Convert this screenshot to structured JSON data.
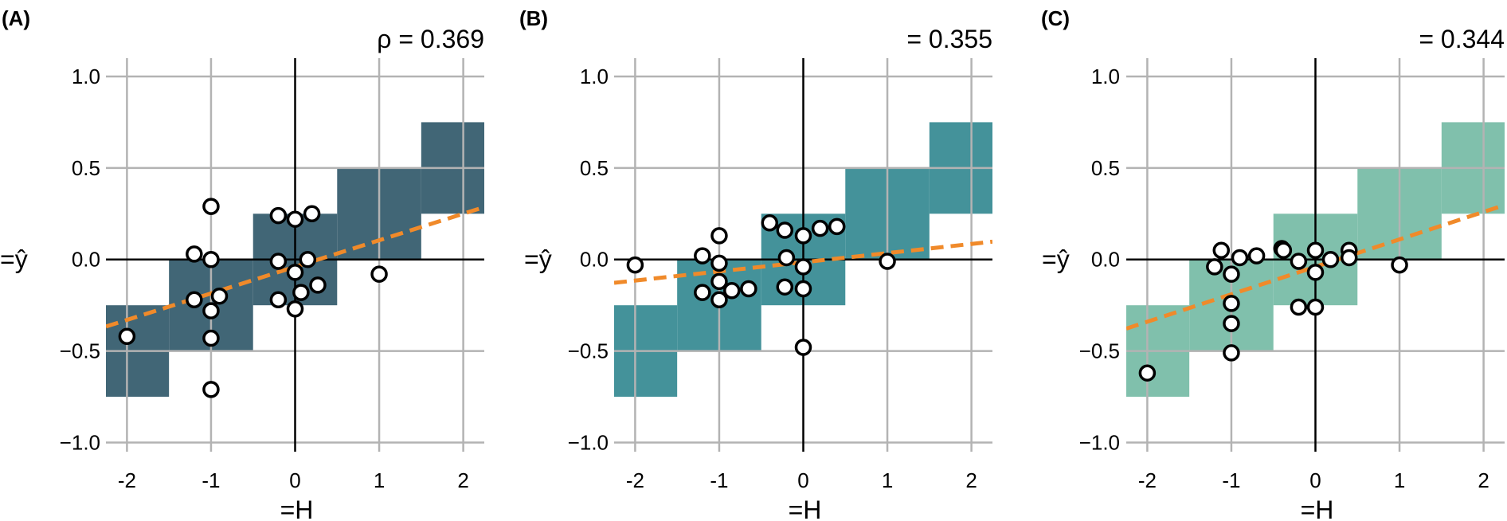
{
  "chart_data": [
    {
      "type": "scatter",
      "panel_label": "(A)",
      "annotation": "ρ = 0.369",
      "xlabel": "=H",
      "ylabel": "=ŷ",
      "xlim": [
        -2.25,
        2.25
      ],
      "ylim": [
        -1.05,
        1.1
      ],
      "xticks": [
        -2,
        -1,
        0,
        1,
        2
      ],
      "xtick_labels": [
        "-2",
        "-1",
        "0",
        "1",
        "2"
      ],
      "yticks": [
        -1.0,
        -0.5,
        0.0,
        0.5,
        1.0
      ],
      "ytick_labels": [
        "−1.0",
        "−0.5",
        "0.0",
        "0.5",
        "1.0"
      ],
      "grid": true,
      "step_color": "#416676",
      "step_bands": [
        {
          "x0": -2.5,
          "x1": -1.5,
          "y0": -0.75,
          "y1": -0.25
        },
        {
          "x0": -1.5,
          "x1": -0.5,
          "y0": -0.5,
          "y1": 0.0
        },
        {
          "x0": -0.5,
          "x1": 0.5,
          "y0": -0.25,
          "y1": 0.25
        },
        {
          "x0": 0.5,
          "x1": 1.5,
          "y0": 0.0,
          "y1": 0.5
        },
        {
          "x0": 1.5,
          "x1": 2.5,
          "y0": 0.25,
          "y1": 0.75
        }
      ],
      "trend_line": {
        "color": "#f08a2a",
        "intercept": -0.04,
        "slope": 0.145
      },
      "points": [
        {
          "x": -2,
          "y": -0.42
        },
        {
          "x": -1.2,
          "y": 0.03
        },
        {
          "x": -1.2,
          "y": -0.22
        },
        {
          "x": -1,
          "y": 0.29
        },
        {
          "x": -1,
          "y": 0.0
        },
        {
          "x": -1,
          "y": -0.28
        },
        {
          "x": -1,
          "y": -0.43
        },
        {
          "x": -1,
          "y": -0.71
        },
        {
          "x": -0.9,
          "y": -0.2
        },
        {
          "x": -0.2,
          "y": 0.24
        },
        {
          "x": -0.2,
          "y": -0.01
        },
        {
          "x": -0.2,
          "y": -0.22
        },
        {
          "x": 0,
          "y": 0.22
        },
        {
          "x": 0,
          "y": -0.07
        },
        {
          "x": 0,
          "y": -0.27
        },
        {
          "x": 0.07,
          "y": -0.18
        },
        {
          "x": 0.15,
          "y": 0.0
        },
        {
          "x": 0.2,
          "y": 0.25
        },
        {
          "x": 0.27,
          "y": -0.14
        },
        {
          "x": 1,
          "y": -0.08
        }
      ]
    },
    {
      "type": "scatter",
      "panel_label": "(B)",
      "annotation": "= 0.355",
      "xlabel": "=H",
      "ylabel": "=ŷ",
      "xlim": [
        -2.25,
        2.25
      ],
      "ylim": [
        -1.05,
        1.1
      ],
      "xticks": [
        -2,
        -1,
        0,
        1,
        2
      ],
      "xtick_labels": [
        "-2",
        "-1",
        "0",
        "1",
        "2"
      ],
      "yticks": [
        -1.0,
        -0.5,
        0.0,
        0.5,
        1.0
      ],
      "ytick_labels": [
        "−1.0",
        "−0.5",
        "0.0",
        "0.5",
        "1.0"
      ],
      "grid": true,
      "step_color": "#44929a",
      "step_bands": [
        {
          "x0": -2.5,
          "x1": -1.5,
          "y0": -0.75,
          "y1": -0.25
        },
        {
          "x0": -1.5,
          "x1": -0.5,
          "y0": -0.5,
          "y1": 0.0
        },
        {
          "x0": -0.5,
          "x1": 0.5,
          "y0": -0.25,
          "y1": 0.25
        },
        {
          "x0": 0.5,
          "x1": 1.5,
          "y0": 0.0,
          "y1": 0.5
        },
        {
          "x0": 1.5,
          "x1": 2.5,
          "y0": 0.25,
          "y1": 0.75
        }
      ],
      "trend_line": {
        "color": "#f08a2a",
        "intercept": -0.015,
        "slope": 0.05
      },
      "points": [
        {
          "x": -2,
          "y": -0.03
        },
        {
          "x": -1.2,
          "y": 0.02
        },
        {
          "x": -1.2,
          "y": -0.18
        },
        {
          "x": -1,
          "y": 0.13
        },
        {
          "x": -1,
          "y": -0.02
        },
        {
          "x": -1,
          "y": -0.12
        },
        {
          "x": -1,
          "y": -0.22
        },
        {
          "x": -0.85,
          "y": -0.17
        },
        {
          "x": -0.65,
          "y": -0.16
        },
        {
          "x": -0.4,
          "y": 0.2
        },
        {
          "x": -0.22,
          "y": 0.16
        },
        {
          "x": -0.22,
          "y": -0.15
        },
        {
          "x": -0.2,
          "y": 0.01
        },
        {
          "x": 0,
          "y": 0.13
        },
        {
          "x": 0,
          "y": -0.04
        },
        {
          "x": 0,
          "y": -0.16
        },
        {
          "x": 0,
          "y": -0.48
        },
        {
          "x": 0.2,
          "y": 0.17
        },
        {
          "x": 0.4,
          "y": 0.18
        },
        {
          "x": 1,
          "y": -0.01
        }
      ]
    },
    {
      "type": "scatter",
      "panel_label": "(C)",
      "annotation": "= 0.344",
      "xlabel": "=H",
      "ylabel": "=ŷ",
      "xlim": [
        -2.25,
        2.25
      ],
      "ylim": [
        -1.05,
        1.1
      ],
      "xticks": [
        -2,
        -1,
        0,
        1,
        2
      ],
      "xtick_labels": [
        "-2",
        "-1",
        "0",
        "1",
        "2"
      ],
      "yticks": [
        -1.0,
        -0.5,
        0.0,
        0.5,
        1.0
      ],
      "ytick_labels": [
        "−1.0",
        "−0.5",
        "0.0",
        "0.5",
        "1.0"
      ],
      "grid": true,
      "step_color": "#80c0ac",
      "step_bands": [
        {
          "x0": -2.5,
          "x1": -1.5,
          "y0": -0.75,
          "y1": -0.25
        },
        {
          "x0": -1.5,
          "x1": -0.5,
          "y0": -0.5,
          "y1": 0.0
        },
        {
          "x0": -0.5,
          "x1": 0.5,
          "y0": -0.25,
          "y1": 0.25
        },
        {
          "x0": 0.5,
          "x1": 1.5,
          "y0": 0.0,
          "y1": 0.5
        },
        {
          "x0": 1.5,
          "x1": 2.5,
          "y0": 0.25,
          "y1": 0.75
        }
      ],
      "trend_line": {
        "color": "#f08a2a",
        "intercept": -0.04,
        "slope": 0.15
      },
      "points": [
        {
          "x": -2,
          "y": -0.62
        },
        {
          "x": -1.2,
          "y": -0.04
        },
        {
          "x": -1.12,
          "y": 0.05
        },
        {
          "x": -1,
          "y": -0.08
        },
        {
          "x": -1,
          "y": -0.24
        },
        {
          "x": -1,
          "y": -0.35
        },
        {
          "x": -1,
          "y": -0.51
        },
        {
          "x": -0.9,
          "y": 0.01
        },
        {
          "x": -0.7,
          "y": 0.02
        },
        {
          "x": -0.4,
          "y": 0.06
        },
        {
          "x": -0.38,
          "y": 0.05
        },
        {
          "x": -0.2,
          "y": -0.01
        },
        {
          "x": -0.2,
          "y": -0.26
        },
        {
          "x": 0,
          "y": 0.05
        },
        {
          "x": 0,
          "y": -0.07
        },
        {
          "x": 0,
          "y": -0.26
        },
        {
          "x": 0.18,
          "y": 0.0
        },
        {
          "x": 0.4,
          "y": 0.05
        },
        {
          "x": 0.4,
          "y": 0.01
        },
        {
          "x": 1,
          "y": -0.03
        }
      ]
    }
  ]
}
